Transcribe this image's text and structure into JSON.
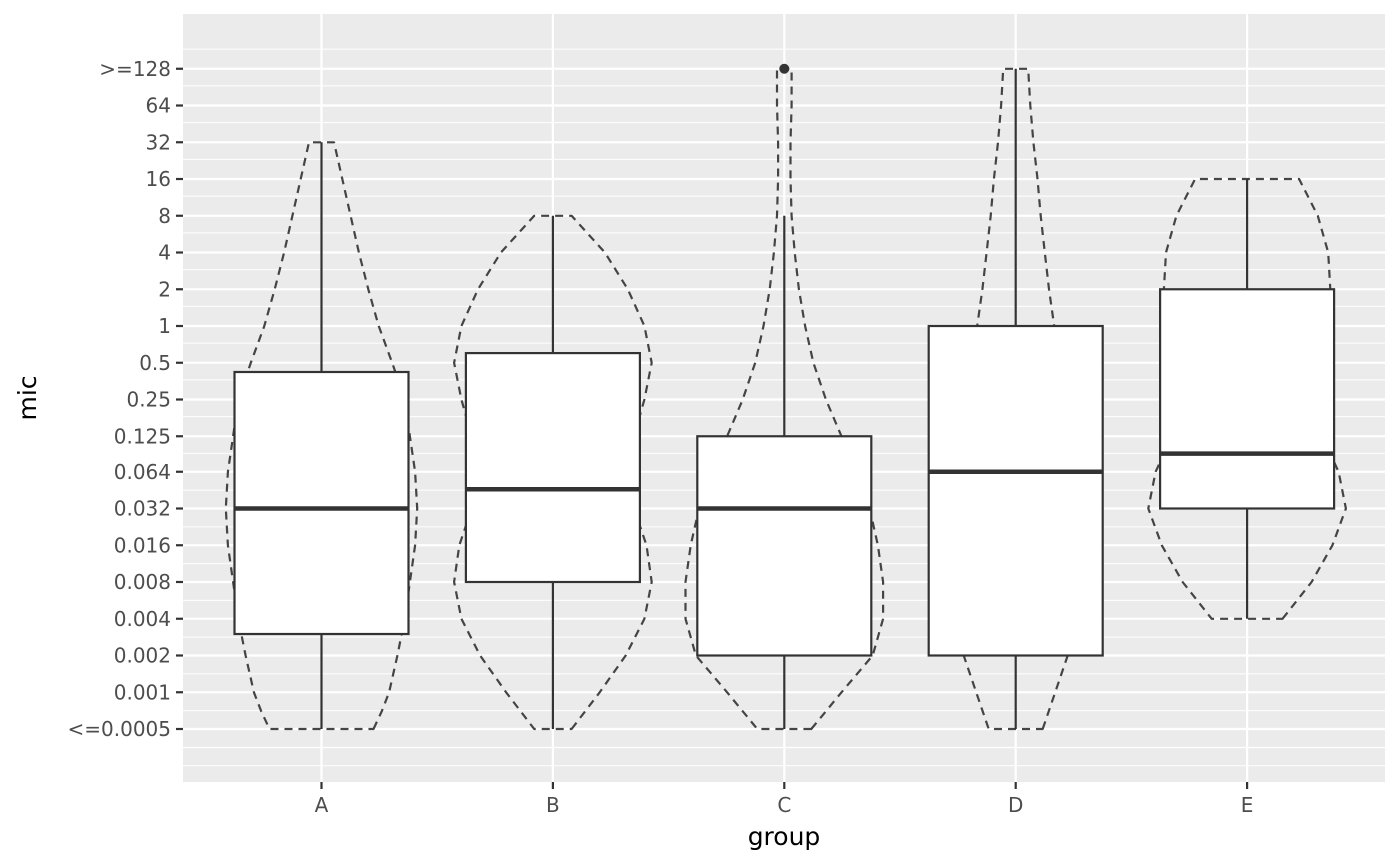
{
  "chart_data": {
    "type": "boxplot",
    "xlabel": "group",
    "ylabel": "mic",
    "y_scale": "log2",
    "categories": [
      "A",
      "B",
      "C",
      "D",
      "E"
    ],
    "y_ticks": [
      {
        "value": 0.0005,
        "label": "<=0.0005"
      },
      {
        "value": 0.001,
        "label": "0.001"
      },
      {
        "value": 0.002,
        "label": "0.002"
      },
      {
        "value": 0.004,
        "label": "0.004"
      },
      {
        "value": 0.008,
        "label": "0.008"
      },
      {
        "value": 0.016,
        "label": "0.016"
      },
      {
        "value": 0.032,
        "label": "0.032"
      },
      {
        "value": 0.064,
        "label": "0.064"
      },
      {
        "value": 0.125,
        "label": "0.125"
      },
      {
        "value": 0.25,
        "label": "0.25"
      },
      {
        "value": 0.5,
        "label": "0.5"
      },
      {
        "value": 1,
        "label": "1"
      },
      {
        "value": 2,
        "label": "2"
      },
      {
        "value": 4,
        "label": "4"
      },
      {
        "value": 8,
        "label": "8"
      },
      {
        "value": 16,
        "label": "16"
      },
      {
        "value": 32,
        "label": "32"
      },
      {
        "value": 64,
        "label": "64"
      },
      {
        "value": 128,
        "label": ">=128"
      }
    ],
    "ylim": [
      0.00025,
      256
    ],
    "boxes": [
      {
        "group": "A",
        "whisker_low": 0.0005,
        "q1": 0.003,
        "median": 0.032,
        "q3": 0.42,
        "whisker_high": 32,
        "outliers": []
      },
      {
        "group": "B",
        "whisker_low": 0.0005,
        "q1": 0.008,
        "median": 0.046,
        "q3": 0.6,
        "whisker_high": 8,
        "outliers": []
      },
      {
        "group": "C",
        "whisker_low": 0.0005,
        "q1": 0.002,
        "median": 0.032,
        "q3": 0.125,
        "whisker_high": 8,
        "outliers": [
          128
        ]
      },
      {
        "group": "D",
        "whisker_low": 0.0005,
        "q1": 0.002,
        "median": 0.064,
        "q3": 1,
        "whisker_high": 128,
        "outliers": []
      },
      {
        "group": "E",
        "whisker_low": 0.004,
        "q1": 0.032,
        "median": 0.09,
        "q3": 2,
        "whisker_high": 16,
        "outliers": []
      }
    ],
    "violins": [
      {
        "group": "A",
        "profile": [
          {
            "y": 0.0005,
            "w": 0.5
          },
          {
            "y": 0.0007,
            "w": 0.58
          },
          {
            "y": 0.001,
            "w": 0.65
          },
          {
            "y": 0.002,
            "w": 0.73
          },
          {
            "y": 0.004,
            "w": 0.8
          },
          {
            "y": 0.008,
            "w": 0.85
          },
          {
            "y": 0.016,
            "w": 0.9
          },
          {
            "y": 0.032,
            "w": 0.92
          },
          {
            "y": 0.064,
            "w": 0.9
          },
          {
            "y": 0.125,
            "w": 0.85
          },
          {
            "y": 0.25,
            "w": 0.8
          },
          {
            "y": 0.5,
            "w": 0.68
          },
          {
            "y": 1,
            "w": 0.55
          },
          {
            "y": 2,
            "w": 0.45
          },
          {
            "y": 4,
            "w": 0.36
          },
          {
            "y": 8,
            "w": 0.28
          },
          {
            "y": 16,
            "w": 0.2
          },
          {
            "y": 32,
            "w": 0.12
          }
        ]
      },
      {
        "group": "B",
        "profile": [
          {
            "y": 0.0005,
            "w": 0.18
          },
          {
            "y": 0.001,
            "w": 0.45
          },
          {
            "y": 0.002,
            "w": 0.7
          },
          {
            "y": 0.004,
            "w": 0.88
          },
          {
            "y": 0.008,
            "w": 0.95
          },
          {
            "y": 0.016,
            "w": 0.9
          },
          {
            "y": 0.032,
            "w": 0.78
          },
          {
            "y": 0.064,
            "w": 0.72
          },
          {
            "y": 0.125,
            "w": 0.78
          },
          {
            "y": 0.25,
            "w": 0.88
          },
          {
            "y": 0.5,
            "w": 0.95
          },
          {
            "y": 1,
            "w": 0.88
          },
          {
            "y": 2,
            "w": 0.72
          },
          {
            "y": 4,
            "w": 0.5
          },
          {
            "y": 8,
            "w": 0.18
          }
        ]
      },
      {
        "group": "C",
        "profile": [
          {
            "y": 0.0005,
            "w": 0.26
          },
          {
            "y": 0.001,
            "w": 0.55
          },
          {
            "y": 0.002,
            "w": 0.85
          },
          {
            "y": 0.004,
            "w": 0.95
          },
          {
            "y": 0.008,
            "w": 0.95
          },
          {
            "y": 0.016,
            "w": 0.9
          },
          {
            "y": 0.032,
            "w": 0.82
          },
          {
            "y": 0.064,
            "w": 0.7
          },
          {
            "y": 0.125,
            "w": 0.55
          },
          {
            "y": 0.25,
            "w": 0.4
          },
          {
            "y": 0.5,
            "w": 0.28
          },
          {
            "y": 1,
            "w": 0.2
          },
          {
            "y": 2,
            "w": 0.14
          },
          {
            "y": 4,
            "w": 0.1
          },
          {
            "y": 8,
            "w": 0.07
          },
          {
            "y": 16,
            "w": 0.06
          },
          {
            "y": 32,
            "w": 0.06
          },
          {
            "y": 64,
            "w": 0.07
          },
          {
            "y": 128,
            "w": 0.07
          }
        ]
      },
      {
        "group": "D",
        "profile": [
          {
            "y": 0.0005,
            "w": 0.26
          },
          {
            "y": 0.001,
            "w": 0.38
          },
          {
            "y": 0.002,
            "w": 0.5
          },
          {
            "y": 0.004,
            "w": 0.6
          },
          {
            "y": 0.008,
            "w": 0.66
          },
          {
            "y": 0.016,
            "w": 0.7
          },
          {
            "y": 0.032,
            "w": 0.68
          },
          {
            "y": 0.064,
            "w": 0.62
          },
          {
            "y": 0.125,
            "w": 0.55
          },
          {
            "y": 0.25,
            "w": 0.48
          },
          {
            "y": 0.5,
            "w": 0.42
          },
          {
            "y": 1,
            "w": 0.37
          },
          {
            "y": 2,
            "w": 0.32
          },
          {
            "y": 4,
            "w": 0.28
          },
          {
            "y": 8,
            "w": 0.24
          },
          {
            "y": 16,
            "w": 0.21
          },
          {
            "y": 32,
            "w": 0.17
          },
          {
            "y": 64,
            "w": 0.14
          },
          {
            "y": 128,
            "w": 0.12
          }
        ]
      },
      {
        "group": "E",
        "profile": [
          {
            "y": 0.004,
            "w": 0.34
          },
          {
            "y": 0.008,
            "w": 0.62
          },
          {
            "y": 0.016,
            "w": 0.82
          },
          {
            "y": 0.032,
            "w": 0.95
          },
          {
            "y": 0.064,
            "w": 0.88
          },
          {
            "y": 0.125,
            "w": 0.72
          },
          {
            "y": 0.25,
            "w": 0.7
          },
          {
            "y": 0.5,
            "w": 0.75
          },
          {
            "y": 1,
            "w": 0.78
          },
          {
            "y": 2,
            "w": 0.8
          },
          {
            "y": 4,
            "w": 0.78
          },
          {
            "y": 8,
            "w": 0.68
          },
          {
            "y": 16,
            "w": 0.5
          }
        ]
      }
    ],
    "colors": {
      "panel_background": "#ebebeb",
      "grid": "#ffffff",
      "box_fill": "#ffffff",
      "box_line": "#333333",
      "violin_line": "#444444"
    },
    "legend": "none",
    "grid": true
  }
}
